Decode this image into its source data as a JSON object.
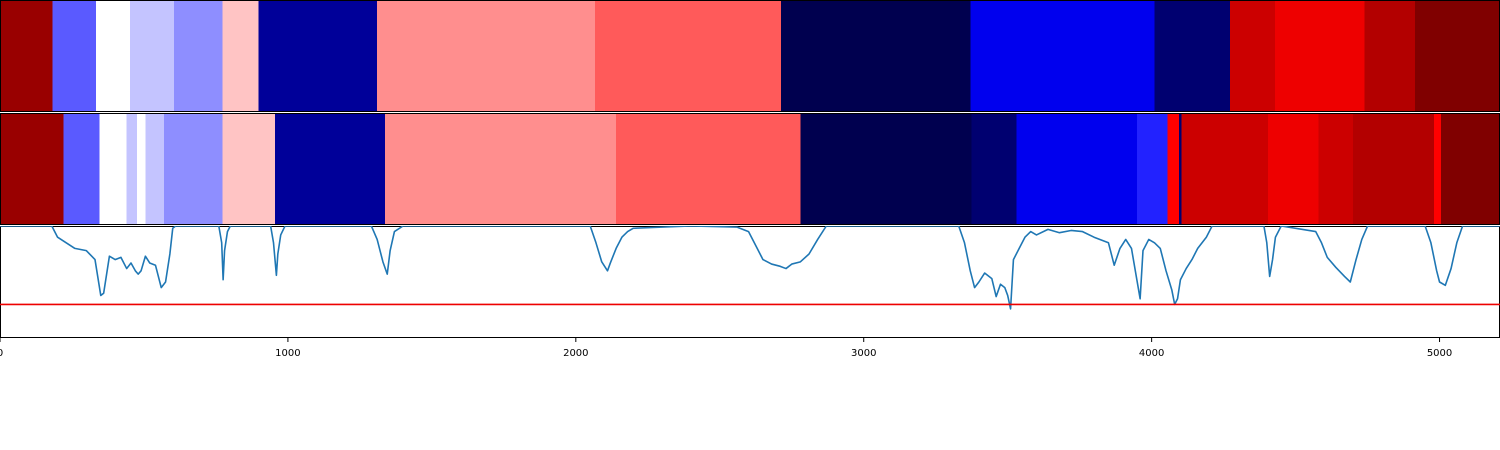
{
  "chart_data": {
    "type": "heatmap",
    "x_range": [
      0,
      5210
    ],
    "x_ticks": [
      {
        "value": 0,
        "label": "0"
      },
      {
        "value": 1000,
        "label": "1000"
      },
      {
        "value": 2000,
        "label": "2000"
      },
      {
        "value": 3000,
        "label": "3000"
      },
      {
        "value": 4000,
        "label": "4000"
      },
      {
        "value": 5000,
        "label": "5000"
      }
    ],
    "rows": [
      {
        "segments": [
          {
            "start": 0,
            "end": 183,
            "color": "#990000"
          },
          {
            "start": 183,
            "end": 334,
            "color": "#5a5aff"
          },
          {
            "start": 334,
            "end": 452,
            "color": "#ffffff"
          },
          {
            "start": 452,
            "end": 605,
            "color": "#c4c4ff"
          },
          {
            "start": 605,
            "end": 772,
            "color": "#8e8eff"
          },
          {
            "start": 772,
            "end": 897,
            "color": "#ffc4c4"
          },
          {
            "start": 897,
            "end": 1310,
            "color": "#000099"
          },
          {
            "start": 1310,
            "end": 2067,
            "color": "#ff8e8e"
          },
          {
            "start": 2067,
            "end": 2713,
            "color": "#ff5a5a"
          },
          {
            "start": 2713,
            "end": 3370,
            "color": "#00004f"
          },
          {
            "start": 3370,
            "end": 4010,
            "color": "#0000ee"
          },
          {
            "start": 4010,
            "end": 4273,
            "color": "#000070"
          },
          {
            "start": 4273,
            "end": 4428,
            "color": "#cc0000"
          },
          {
            "start": 4428,
            "end": 4740,
            "color": "#ee0000"
          },
          {
            "start": 4740,
            "end": 4914,
            "color": "#b30000"
          },
          {
            "start": 4914,
            "end": 5210,
            "color": "#800000"
          }
        ]
      },
      {
        "segments": [
          {
            "start": 0,
            "end": 220,
            "color": "#990000"
          },
          {
            "start": 220,
            "end": 345,
            "color": "#5a5aff"
          },
          {
            "start": 345,
            "end": 440,
            "color": "#ffffff"
          },
          {
            "start": 440,
            "end": 475,
            "color": "#c4c4ff"
          },
          {
            "start": 475,
            "end": 505,
            "color": "#ffffff"
          },
          {
            "start": 505,
            "end": 570,
            "color": "#c4c4ff"
          },
          {
            "start": 570,
            "end": 773,
            "color": "#8e8eff"
          },
          {
            "start": 773,
            "end": 955,
            "color": "#ffc4c4"
          },
          {
            "start": 955,
            "end": 1337,
            "color": "#000099"
          },
          {
            "start": 1337,
            "end": 2140,
            "color": "#ff8e8e"
          },
          {
            "start": 2140,
            "end": 2780,
            "color": "#ff5a5a"
          },
          {
            "start": 2780,
            "end": 3375,
            "color": "#00004f"
          },
          {
            "start": 3375,
            "end": 3530,
            "color": "#000070"
          },
          {
            "start": 3530,
            "end": 3950,
            "color": "#0000ee"
          },
          {
            "start": 3950,
            "end": 4055,
            "color": "#2222ff"
          },
          {
            "start": 4055,
            "end": 4095,
            "color": "#ff0000"
          },
          {
            "start": 4095,
            "end": 4103,
            "color": "#000070"
          },
          {
            "start": 4103,
            "end": 4405,
            "color": "#cc0000"
          },
          {
            "start": 4405,
            "end": 4580,
            "color": "#ee0000"
          },
          {
            "start": 4580,
            "end": 4700,
            "color": "#cc0000"
          },
          {
            "start": 4700,
            "end": 4980,
            "color": "#b30000"
          },
          {
            "start": 4980,
            "end": 5005,
            "color": "#ff0000"
          },
          {
            "start": 5005,
            "end": 5210,
            "color": "#800000"
          }
        ]
      }
    ],
    "line_series": {
      "color": "#1f77b4",
      "y_range": [
        0,
        1
      ],
      "points": [
        [
          0,
          1.0
        ],
        [
          180,
          1.0
        ],
        [
          200,
          0.9
        ],
        [
          230,
          0.85
        ],
        [
          260,
          0.8
        ],
        [
          300,
          0.78
        ],
        [
          330,
          0.7
        ],
        [
          350,
          0.38
        ],
        [
          360,
          0.4
        ],
        [
          380,
          0.73
        ],
        [
          400,
          0.7
        ],
        [
          420,
          0.72
        ],
        [
          440,
          0.62
        ],
        [
          455,
          0.67
        ],
        [
          470,
          0.6
        ],
        [
          480,
          0.57
        ],
        [
          490,
          0.6
        ],
        [
          505,
          0.73
        ],
        [
          520,
          0.67
        ],
        [
          540,
          0.65
        ],
        [
          560,
          0.45
        ],
        [
          575,
          0.5
        ],
        [
          590,
          0.75
        ],
        [
          600,
          0.98
        ],
        [
          610,
          1.0
        ],
        [
          760,
          1.0
        ],
        [
          770,
          0.85
        ],
        [
          775,
          0.52
        ],
        [
          780,
          0.78
        ],
        [
          790,
          0.95
        ],
        [
          800,
          1.0
        ],
        [
          940,
          1.0
        ],
        [
          950,
          0.85
        ],
        [
          960,
          0.56
        ],
        [
          965,
          0.75
        ],
        [
          975,
          0.92
        ],
        [
          990,
          1.0
        ],
        [
          1290,
          1.0
        ],
        [
          1310,
          0.88
        ],
        [
          1330,
          0.68
        ],
        [
          1345,
          0.57
        ],
        [
          1355,
          0.78
        ],
        [
          1370,
          0.95
        ],
        [
          1400,
          1.0
        ],
        [
          2050,
          1.0
        ],
        [
          2070,
          0.85
        ],
        [
          2090,
          0.68
        ],
        [
          2110,
          0.6
        ],
        [
          2120,
          0.67
        ],
        [
          2140,
          0.8
        ],
        [
          2160,
          0.9
        ],
        [
          2180,
          0.95
        ],
        [
          2200,
          0.98
        ],
        [
          2300,
          0.99
        ],
        [
          2400,
          1.0
        ],
        [
          2560,
          0.99
        ],
        [
          2600,
          0.95
        ],
        [
          2630,
          0.8
        ],
        [
          2650,
          0.7
        ],
        [
          2680,
          0.66
        ],
        [
          2710,
          0.64
        ],
        [
          2730,
          0.62
        ],
        [
          2750,
          0.66
        ],
        [
          2780,
          0.68
        ],
        [
          2810,
          0.75
        ],
        [
          2840,
          0.88
        ],
        [
          2870,
          1.0
        ],
        [
          3330,
          1.0
        ],
        [
          3350,
          0.85
        ],
        [
          3370,
          0.6
        ],
        [
          3385,
          0.45
        ],
        [
          3400,
          0.5
        ],
        [
          3420,
          0.58
        ],
        [
          3445,
          0.53
        ],
        [
          3460,
          0.37
        ],
        [
          3475,
          0.48
        ],
        [
          3490,
          0.45
        ],
        [
          3500,
          0.38
        ],
        [
          3510,
          0.26
        ],
        [
          3520,
          0.7
        ],
        [
          3540,
          0.8
        ],
        [
          3560,
          0.9
        ],
        [
          3580,
          0.95
        ],
        [
          3600,
          0.92
        ],
        [
          3640,
          0.97
        ],
        [
          3680,
          0.94
        ],
        [
          3720,
          0.96
        ],
        [
          3760,
          0.95
        ],
        [
          3800,
          0.9
        ],
        [
          3850,
          0.85
        ],
        [
          3870,
          0.65
        ],
        [
          3890,
          0.8
        ],
        [
          3910,
          0.88
        ],
        [
          3930,
          0.8
        ],
        [
          3950,
          0.5
        ],
        [
          3960,
          0.35
        ],
        [
          3970,
          0.78
        ],
        [
          3990,
          0.88
        ],
        [
          4010,
          0.85
        ],
        [
          4030,
          0.8
        ],
        [
          4050,
          0.6
        ],
        [
          4070,
          0.43
        ],
        [
          4080,
          0.3
        ],
        [
          4090,
          0.35
        ],
        [
          4100,
          0.52
        ],
        [
          4120,
          0.62
        ],
        [
          4140,
          0.7
        ],
        [
          4160,
          0.8
        ],
        [
          4190,
          0.9
        ],
        [
          4210,
          1.0
        ],
        [
          4390,
          1.0
        ],
        [
          4400,
          0.85
        ],
        [
          4410,
          0.55
        ],
        [
          4420,
          0.7
        ],
        [
          4430,
          0.9
        ],
        [
          4450,
          1.0
        ],
        [
          4570,
          0.95
        ],
        [
          4590,
          0.85
        ],
        [
          4610,
          0.72
        ],
        [
          4640,
          0.63
        ],
        [
          4670,
          0.55
        ],
        [
          4690,
          0.5
        ],
        [
          4710,
          0.7
        ],
        [
          4730,
          0.88
        ],
        [
          4750,
          1.0
        ],
        [
          4950,
          1.0
        ],
        [
          4970,
          0.85
        ],
        [
          4990,
          0.6
        ],
        [
          5000,
          0.5
        ],
        [
          5020,
          0.47
        ],
        [
          5040,
          0.62
        ],
        [
          5060,
          0.85
        ],
        [
          5080,
          1.0
        ],
        [
          5210,
          1.0
        ]
      ]
    },
    "threshold": {
      "y": 0.3,
      "color": "#ee0000"
    },
    "legend": null,
    "grid": false
  }
}
